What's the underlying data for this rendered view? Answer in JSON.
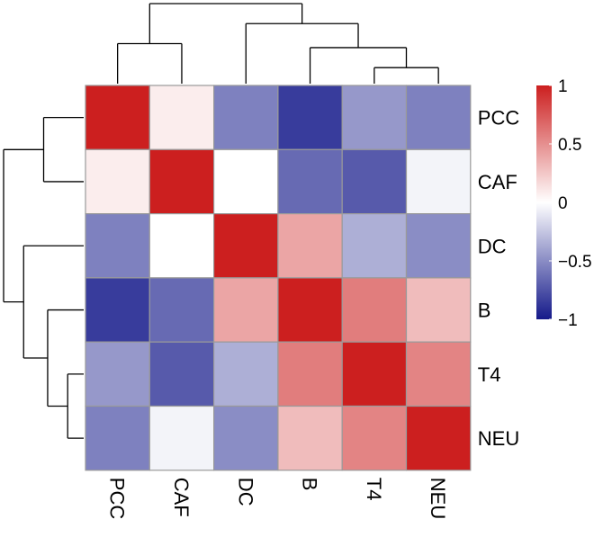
{
  "chart_data": {
    "type": "heatmap",
    "row_labels": [
      "PCC",
      "CAF",
      "DC",
      "B",
      "T4",
      "NEU"
    ],
    "col_labels": [
      "PCC",
      "CAF",
      "DC",
      "B",
      "T4",
      "NEU"
    ],
    "values": [
      [
        1.0,
        0.08,
        -0.55,
        -0.85,
        -0.45,
        -0.55
      ],
      [
        0.08,
        1.0,
        0.0,
        -0.65,
        -0.72,
        -0.05
      ],
      [
        -0.55,
        0.0,
        1.0,
        0.4,
        -0.35,
        -0.5
      ],
      [
        -0.85,
        -0.65,
        0.4,
        1.0,
        0.58,
        0.3
      ],
      [
        -0.45,
        -0.72,
        -0.35,
        0.58,
        1.0,
        0.55
      ],
      [
        -0.55,
        -0.05,
        -0.5,
        0.3,
        0.55,
        1.0
      ]
    ],
    "colorbar": {
      "min": -1,
      "max": 1,
      "ticks": [
        1,
        0.5,
        0,
        -0.5,
        -1
      ],
      "tick_labels": [
        "1",
        "0.5",
        "0",
        "−0.5",
        "−1"
      ],
      "low_color": "#151a8a",
      "mid_color": "#ffffff",
      "high_color": "#cc1f1f"
    },
    "dendrogram": {
      "cluster_order": [
        "PCC",
        "CAF",
        "DC",
        "B",
        "T4",
        "NEU"
      ],
      "merges": [
        {
          "left": "T4",
          "right": "NEU",
          "height": 0.2
        },
        {
          "left": "B",
          "right": "T4+NEU",
          "height": 0.45
        },
        {
          "left": "DC",
          "right": "B+T4+NEU",
          "height": 0.75
        },
        {
          "left": "PCC",
          "right": "CAF",
          "height": 0.5
        },
        {
          "left": "PCC+CAF",
          "right": "DC+B+T4+NEU",
          "height": 1.0
        }
      ]
    },
    "grid_line_color": "#9a9a9a",
    "legend_position": "right"
  }
}
